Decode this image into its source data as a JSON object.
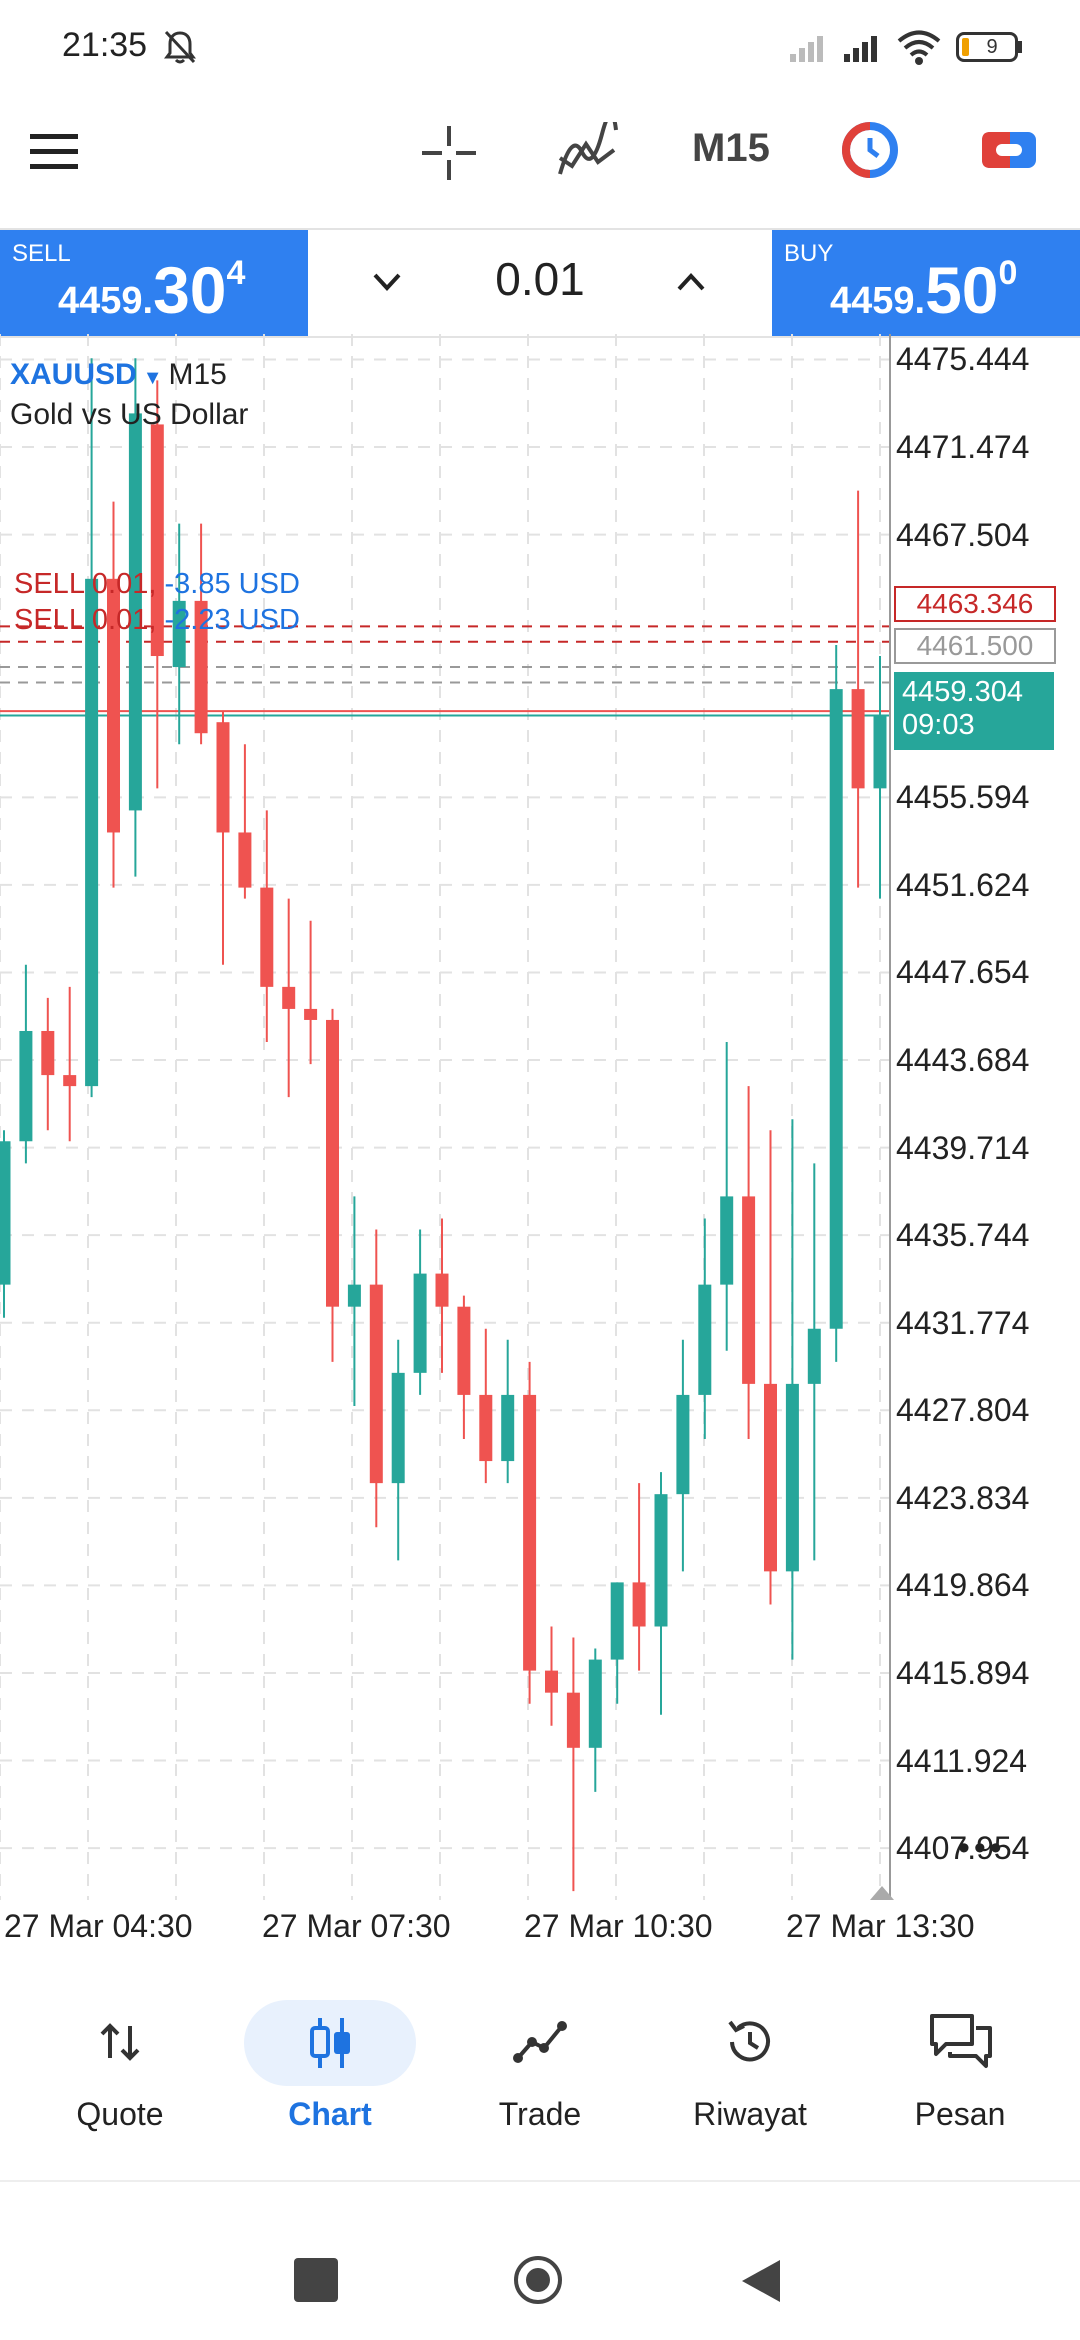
{
  "status_bar": {
    "time": "21:35",
    "battery": "9"
  },
  "toolbar": {
    "timeframe": "M15"
  },
  "trade_panel": {
    "sell": {
      "label": "SELL",
      "price_prefix": "4459.",
      "price_big": "30",
      "price_sup": "4"
    },
    "buy": {
      "label": "BUY",
      "price_prefix": "4459.",
      "price_big": "50",
      "price_sup": "0"
    },
    "lot": "0.01"
  },
  "chart": {
    "symbol": "XAUUSD",
    "symbol_timeframe": "M15",
    "description": "Gold vs US Dollar",
    "positions": [
      {
        "label": "SELL 0.01,",
        "profit": "-3.85 USD"
      },
      {
        "label": "SELL 0.01,",
        "profit": "-2.23 USD"
      }
    ],
    "marker_sell_level": "4463.346",
    "marker_gray_level": "4461.500",
    "current_price": "4459.304",
    "countdown": "09:03",
    "price_ticks": [
      "4475.444",
      "4471.474",
      "4467.504",
      "4455.594",
      "4451.624",
      "4447.654",
      "4443.684",
      "4439.714",
      "4435.744",
      "4431.774",
      "4427.804",
      "4423.834",
      "4419.864",
      "4415.894",
      "4411.924",
      "4407.954"
    ],
    "time_ticks": [
      "27 Mar 04:30",
      "27 Mar 07:30",
      "27 Mar 10:30",
      "27 Mar 13:30"
    ],
    "colors": {
      "up": "#26a69a",
      "down": "#ef5350",
      "accent": "#2f80f0"
    }
  },
  "chart_data": {
    "type": "candlestick",
    "title": "XAUUSD M15 - Gold vs US Dollar",
    "ylim": [
      4405.6,
      4476.6
    ],
    "candles": [
      {
        "o": 4433.5,
        "h": 4440.5,
        "l": 4432.0,
        "c": 4440.0
      },
      {
        "o": 4440.0,
        "h": 4448.0,
        "l": 4439.0,
        "c": 4445.0
      },
      {
        "o": 4445.0,
        "h": 4446.5,
        "l": 4440.5,
        "c": 4443.0
      },
      {
        "o": 4443.0,
        "h": 4447.0,
        "l": 4440.0,
        "c": 4442.5
      },
      {
        "o": 4442.5,
        "h": 4475.5,
        "l": 4442.0,
        "c": 4465.5
      },
      {
        "o": 4465.5,
        "h": 4469.0,
        "l": 4451.5,
        "c": 4454.0
      },
      {
        "o": 4455.0,
        "h": 4475.5,
        "l": 4452.0,
        "c": 4473.0
      },
      {
        "o": 4472.5,
        "h": 4474.5,
        "l": 4456.0,
        "c": 4462.0
      },
      {
        "o": 4461.5,
        "h": 4468.0,
        "l": 4458.0,
        "c": 4464.5
      },
      {
        "o": 4464.5,
        "h": 4468.0,
        "l": 4458.0,
        "c": 4458.5
      },
      {
        "o": 4459.0,
        "h": 4459.5,
        "l": 4448.0,
        "c": 4454.0
      },
      {
        "o": 4454.0,
        "h": 4458.0,
        "l": 4451.0,
        "c": 4451.5
      },
      {
        "o": 4451.5,
        "h": 4455.0,
        "l": 4444.5,
        "c": 4447.0
      },
      {
        "o": 4447.0,
        "h": 4451.0,
        "l": 4442.0,
        "c": 4446.0
      },
      {
        "o": 4446.0,
        "h": 4450.0,
        "l": 4443.5,
        "c": 4445.5
      },
      {
        "o": 4445.5,
        "h": 4446.0,
        "l": 4430.0,
        "c": 4432.5
      },
      {
        "o": 4432.5,
        "h": 4437.5,
        "l": 4428.0,
        "c": 4433.5
      },
      {
        "o": 4433.5,
        "h": 4436.0,
        "l": 4422.5,
        "c": 4424.5
      },
      {
        "o": 4424.5,
        "h": 4431.0,
        "l": 4421.0,
        "c": 4429.5
      },
      {
        "o": 4429.5,
        "h": 4436.0,
        "l": 4428.5,
        "c": 4434.0
      },
      {
        "o": 4434.0,
        "h": 4436.5,
        "l": 4429.5,
        "c": 4432.5
      },
      {
        "o": 4432.5,
        "h": 4433.0,
        "l": 4426.5,
        "c": 4428.5
      },
      {
        "o": 4428.5,
        "h": 4431.5,
        "l": 4424.5,
        "c": 4425.5
      },
      {
        "o": 4425.5,
        "h": 4431.0,
        "l": 4424.5,
        "c": 4428.5
      },
      {
        "o": 4428.5,
        "h": 4430.0,
        "l": 4414.5,
        "c": 4416.0
      },
      {
        "o": 4416.0,
        "h": 4418.0,
        "l": 4413.5,
        "c": 4415.0
      },
      {
        "o": 4415.0,
        "h": 4417.5,
        "l": 4406.0,
        "c": 4412.5
      },
      {
        "o": 4412.5,
        "h": 4417.0,
        "l": 4410.5,
        "c": 4416.5
      },
      {
        "o": 4416.5,
        "h": 4420.0,
        "l": 4414.5,
        "c": 4420.0
      },
      {
        "o": 4420.0,
        "h": 4424.5,
        "l": 4416.0,
        "c": 4418.0
      },
      {
        "o": 4418.0,
        "h": 4425.0,
        "l": 4414.0,
        "c": 4424.0
      },
      {
        "o": 4424.0,
        "h": 4431.0,
        "l": 4420.5,
        "c": 4428.5
      },
      {
        "o": 4428.5,
        "h": 4436.5,
        "l": 4426.5,
        "c": 4433.5
      },
      {
        "o": 4433.5,
        "h": 4444.5,
        "l": 4430.5,
        "c": 4437.5
      },
      {
        "o": 4437.5,
        "h": 4442.5,
        "l": 4426.5,
        "c": 4429.0
      },
      {
        "o": 4429.0,
        "h": 4440.5,
        "l": 4419.0,
        "c": 4420.5
      },
      {
        "o": 4420.5,
        "h": 4441.0,
        "l": 4416.5,
        "c": 4429.0
      },
      {
        "o": 4429.0,
        "h": 4439.0,
        "l": 4421.0,
        "c": 4431.5
      },
      {
        "o": 4431.5,
        "h": 4462.5,
        "l": 4430.0,
        "c": 4460.5
      },
      {
        "o": 4460.5,
        "h": 4469.5,
        "l": 4451.5,
        "c": 4456.0
      },
      {
        "o": 4456.0,
        "h": 4462.0,
        "l": 4451.0,
        "c": 4459.3
      }
    ],
    "price_levels": [
      4463.346,
      4461.5,
      4459.304
    ],
    "x_ticks": [
      "27 Mar 04:30",
      "27 Mar 07:30",
      "27 Mar 10:30",
      "27 Mar 13:30"
    ]
  },
  "bottom_nav": {
    "items": [
      {
        "label": "Quote",
        "icon": "quote-arrows-icon"
      },
      {
        "label": "Chart",
        "icon": "chart-candles-icon"
      },
      {
        "label": "Trade",
        "icon": "trade-line-icon"
      },
      {
        "label": "Riwayat",
        "icon": "history-icon"
      },
      {
        "label": "Pesan",
        "icon": "messages-icon"
      }
    ]
  }
}
